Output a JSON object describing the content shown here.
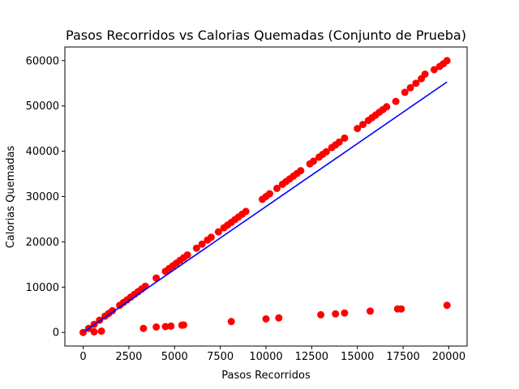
{
  "chart_data": {
    "type": "scatter",
    "title": "Pasos Recorridos vs Calorias Quemadas (Conjunto de Prueba)",
    "xlabel": "Pasos Recorridos",
    "ylabel": "Calorias Quemadas",
    "xlim": [
      -1000,
      21000
    ],
    "ylim": [
      -3000,
      63000
    ],
    "xticks": [
      0,
      2500,
      5000,
      7500,
      10000,
      12500,
      15000,
      17500,
      20000
    ],
    "yticks": [
      0,
      10000,
      20000,
      30000,
      40000,
      50000,
      60000
    ],
    "grid": false,
    "legend": "none",
    "scatter_color": "#ff0000",
    "line_color": "#0000ff",
    "series": [
      {
        "type": "scatter",
        "x": [
          0,
          300,
          600,
          900,
          1200,
          1400,
          1600,
          2000,
          2200,
          2400,
          2600,
          2800,
          3000,
          3200,
          3400,
          4000,
          4500,
          4700,
          4900,
          5100,
          5300,
          5500,
          5700,
          6200,
          6500,
          6800,
          7000,
          7400,
          7700,
          7900,
          8100,
          8300,
          8500,
          8700,
          8900,
          9800,
          10000,
          10200,
          10600,
          10900,
          11100,
          11300,
          11500,
          11700,
          11900,
          12400,
          12600,
          12900,
          13100,
          13300,
          13600,
          13800,
          14000,
          14300,
          15000,
          15300,
          15600,
          15800,
          16000,
          16200,
          16400,
          16600,
          17100,
          17600,
          17900,
          18200,
          18500,
          18700,
          19200,
          19500,
          19700,
          19900
        ],
        "y": [
          0,
          900,
          1800,
          2700,
          3600,
          4200,
          4800,
          6000,
          6600,
          7200,
          7800,
          8400,
          9000,
          9600,
          10200,
          12000,
          13500,
          14100,
          14700,
          15300,
          15900,
          16500,
          17100,
          18600,
          19500,
          20400,
          21000,
          22200,
          23100,
          23700,
          24300,
          24900,
          25500,
          26100,
          26700,
          29400,
          30000,
          30600,
          31800,
          32700,
          33300,
          33900,
          34500,
          35100,
          35700,
          37200,
          37800,
          38700,
          39300,
          39900,
          40800,
          41400,
          42000,
          42900,
          45000,
          45900,
          46800,
          47400,
          48000,
          48600,
          49200,
          49800,
          51000,
          53000,
          54000,
          55000,
          56000,
          57000,
          58000,
          58700,
          59300,
          60000
        ]
      },
      {
        "type": "scatter",
        "x": [
          600,
          1000,
          3300,
          4000,
          4500,
          4800,
          5400,
          5500,
          8100,
          10000,
          10700,
          13000,
          13800,
          14300,
          15700,
          17200,
          17400,
          19900
        ],
        "y": [
          150,
          300,
          900,
          1200,
          1300,
          1400,
          1600,
          1650,
          2400,
          3000,
          3200,
          3900,
          4100,
          4300,
          4700,
          5200,
          5200,
          6000
        ]
      },
      {
        "type": "line",
        "x": [
          0,
          19900
        ],
        "y": [
          0,
          55300
        ]
      }
    ]
  }
}
